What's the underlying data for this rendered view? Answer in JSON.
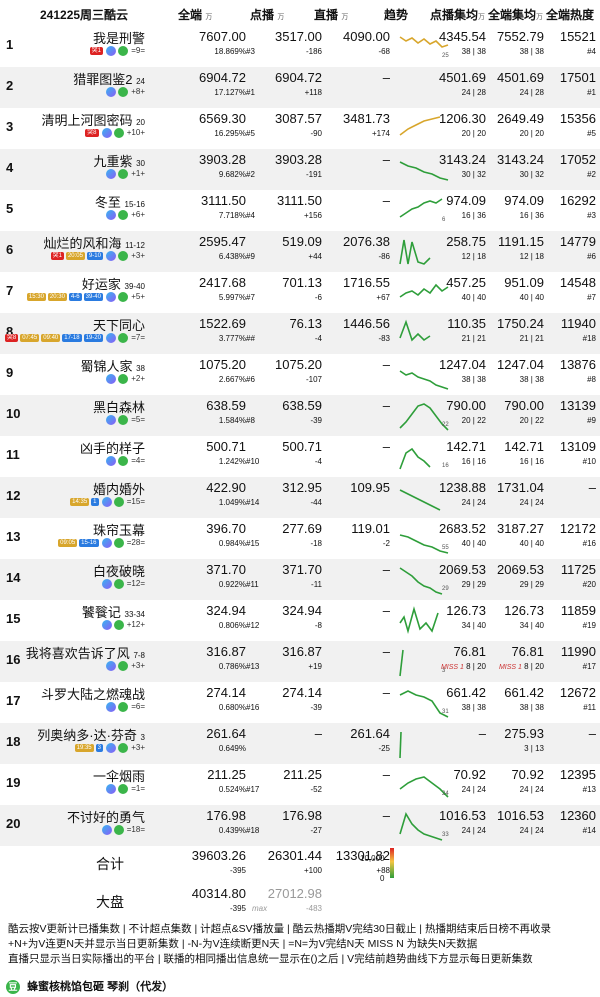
{
  "header": {
    "date_platform": "241225周三酷云",
    "col_total": "全端",
    "col_total_unit": "万",
    "col_vod": "点播",
    "col_vod_unit": "万",
    "col_live": "直播",
    "col_live_unit": "万",
    "col_trend": "趋势",
    "col_vod_avg": "点播集均",
    "col_vod_avg_unit": "万",
    "col_total_avg": "全端集均",
    "col_total_avg_unit": "万",
    "col_heat": "全端热度"
  },
  "rows": [
    {
      "rank": "1",
      "title": "我是刑警",
      "ep": "",
      "sub": "=9=",
      "tags": [
        "突1"
      ],
      "total": "7607.00",
      "share": "18.869%",
      "vod": "3517.00",
      "vod_rank": "#3",
      "vod_chg": "-186",
      "live": "4090.00",
      "live_chg": "-68",
      "trend_end": "25",
      "vod_avg": "4345.54",
      "vod_avg_ep": "38 | 38",
      "total_avg": "7552.79",
      "total_avg_ep": "38 | 38",
      "heat": "15521",
      "heat_rank": "#4"
    },
    {
      "rank": "2",
      "title": "猎罪图鉴2",
      "ep": "24",
      "sub": "+8+",
      "tags": [],
      "total": "6904.72",
      "share": "17.127%",
      "vod": "6904.72",
      "vod_rank": "#1",
      "vod_chg": "+118",
      "live": "–",
      "live_chg": "",
      "trend_end": "",
      "vod_avg": "4501.69",
      "vod_avg_ep": "24 | 28",
      "total_avg": "4501.69",
      "total_avg_ep": "24 | 28",
      "heat": "17501",
      "heat_rank": "#1"
    },
    {
      "rank": "3",
      "title": "清明上河图密码",
      "ep": "20",
      "sub": "+10+",
      "tags": [
        "突8"
      ],
      "total": "6569.30",
      "share": "16.295%",
      "vod": "3087.57",
      "vod_rank": "#5",
      "vod_chg": "-90",
      "live": "3481.73",
      "live_chg": "+174",
      "trend_end": "",
      "vod_avg": "1206.30",
      "vod_avg_ep": "20 | 20",
      "total_avg": "2649.49",
      "total_avg_ep": "20 | 20",
      "heat": "15356",
      "heat_rank": "#5"
    },
    {
      "rank": "4",
      "title": "九重紫",
      "ep": "30",
      "sub": "+1+",
      "tags": [],
      "total": "3903.28",
      "share": "9.682%",
      "vod": "3903.28",
      "vod_rank": "#2",
      "vod_chg": "-191",
      "live": "–",
      "live_chg": "",
      "trend_end": "",
      "vod_avg": "3143.24",
      "vod_avg_ep": "30 | 32",
      "total_avg": "3143.24",
      "total_avg_ep": "30 | 32",
      "heat": "17052",
      "heat_rank": "#2"
    },
    {
      "rank": "5",
      "title": "冬至",
      "ep": "15-16",
      "sub": "+6+",
      "tags": [],
      "total": "3111.50",
      "share": "7.718%",
      "vod": "3111.50",
      "vod_rank": "#4",
      "vod_chg": "+156",
      "live": "–",
      "live_chg": "",
      "trend_end": "6",
      "vod_avg": "974.09",
      "vod_avg_ep": "16 | 36",
      "total_avg": "974.09",
      "total_avg_ep": "16 | 36",
      "heat": "16292",
      "heat_rank": "#3"
    },
    {
      "rank": "6",
      "title": "灿烂的风和海",
      "ep": "11-12",
      "sub": "+3+",
      "tags": [
        "突1",
        "20:05",
        "9-10"
      ],
      "total": "2595.47",
      "share": "6.438%",
      "vod": "519.09",
      "vod_rank": "#9",
      "vod_chg": "+44",
      "live": "2076.38",
      "live_chg": "-86",
      "trend_end": "",
      "vod_avg": "258.75",
      "vod_avg_ep": "12 | 18",
      "total_avg": "1191.15",
      "total_avg_ep": "12 | 18",
      "heat": "14779",
      "heat_rank": "#6"
    },
    {
      "rank": "7",
      "title": "好运家",
      "ep": "39-40",
      "sub": "+5+",
      "tags": [
        "15:30",
        "20:30",
        "4-6",
        "39-40"
      ],
      "total": "2417.68",
      "share": "5.997%",
      "vod": "701.13",
      "vod_rank": "#7",
      "vod_chg": "-6",
      "live": "1716.55",
      "live_chg": "+67",
      "trend_end": "",
      "vod_avg": "457.25",
      "vod_avg_ep": "40 | 40",
      "total_avg": "951.09",
      "total_avg_ep": "40 | 40",
      "heat": "14548",
      "heat_rank": "#7"
    },
    {
      "rank": "8",
      "title": "天下同心",
      "ep": "",
      "sub": "=7=",
      "tags": [
        "突8",
        "07:45",
        "09:40",
        "17-18",
        "19-20"
      ],
      "total": "1522.69",
      "share": "3.777%",
      "vod": "76.13",
      "vod_rank": "##",
      "vod_chg": "-4",
      "live": "1446.56",
      "live_chg": "-83",
      "trend_end": "",
      "vod_avg": "110.35",
      "vod_avg_ep": "21 | 21",
      "total_avg": "1750.24",
      "total_avg_ep": "21 | 21",
      "heat": "11940",
      "heat_rank": "#18"
    },
    {
      "rank": "9",
      "title": "蜀锦人家",
      "ep": "38",
      "sub": "+2+",
      "tags": [],
      "total": "1075.20",
      "share": "2.667%",
      "vod": "1075.20",
      "vod_rank": "#6",
      "vod_chg": "-107",
      "live": "–",
      "live_chg": "",
      "trend_end": "",
      "vod_avg": "1247.04",
      "vod_avg_ep": "38 | 38",
      "total_avg": "1247.04",
      "total_avg_ep": "38 | 38",
      "heat": "13876",
      "heat_rank": "#8"
    },
    {
      "rank": "10",
      "title": "黑白森林",
      "ep": "",
      "sub": "=5=",
      "tags": [],
      "total": "638.59",
      "share": "1.584%",
      "vod": "638.59",
      "vod_rank": "#8",
      "vod_chg": "-39",
      "live": "–",
      "live_chg": "",
      "trend_end": "22",
      "vod_avg": "790.00",
      "vod_avg_ep": "20 | 22",
      "total_avg": "790.00",
      "total_avg_ep": "20 | 22",
      "heat": "13139",
      "heat_rank": "#9"
    },
    {
      "rank": "11",
      "title": "凶手的样子",
      "ep": "",
      "sub": "=4=",
      "tags": [],
      "total": "500.71",
      "share": "1.242%",
      "vod": "500.71",
      "vod_rank": "#10",
      "vod_chg": "-4",
      "live": "–",
      "live_chg": "",
      "trend_end": "16",
      "vod_avg": "142.71",
      "vod_avg_ep": "16 | 16",
      "total_avg": "142.71",
      "total_avg_ep": "16 | 16",
      "heat": "13109",
      "heat_rank": "#10"
    },
    {
      "rank": "12",
      "title": "婚内婚外",
      "ep": "",
      "sub": "=15=",
      "tags": [
        "14:35",
        "1"
      ],
      "total": "422.90",
      "share": "1.049%",
      "vod": "312.95",
      "vod_rank": "#14",
      "vod_chg": "-44",
      "live": "109.95",
      "live_chg": "",
      "trend_end": "",
      "vod_avg": "1238.88",
      "vod_avg_ep": "24 | 24",
      "total_avg": "1731.04",
      "total_avg_ep": "24 | 24",
      "heat": "–",
      "heat_rank": ""
    },
    {
      "rank": "13",
      "title": "珠帘玉幕",
      "ep": "",
      "sub": "=28=",
      "tags": [
        "09:05",
        "15-16"
      ],
      "total": "396.70",
      "share": "0.984%",
      "vod": "277.69",
      "vod_rank": "#15",
      "vod_chg": "-18",
      "live": "119.01",
      "live_chg": "-2",
      "trend_end": "55",
      "vod_avg": "2683.52",
      "vod_avg_ep": "40 | 40",
      "total_avg": "3187.27",
      "total_avg_ep": "40 | 40",
      "heat": "12172",
      "heat_rank": "#16"
    },
    {
      "rank": "14",
      "title": "白夜破晓",
      "ep": "",
      "sub": "=12=",
      "tags": [],
      "total": "371.70",
      "share": "0.922%",
      "vod": "371.70",
      "vod_rank": "#11",
      "vod_chg": "-11",
      "live": "–",
      "live_chg": "",
      "trend_end": "29",
      "vod_avg": "2069.53",
      "vod_avg_ep": "29 | 29",
      "total_avg": "2069.53",
      "total_avg_ep": "29 | 29",
      "heat": "11725",
      "heat_rank": "#20"
    },
    {
      "rank": "15",
      "title": "饕餮记",
      "ep": "33-34",
      "sub": "+12+",
      "tags": [],
      "total": "324.94",
      "share": "0.806%",
      "vod": "324.94",
      "vod_rank": "#12",
      "vod_chg": "-8",
      "live": "–",
      "live_chg": "",
      "trend_end": "",
      "vod_avg": "126.73",
      "vod_avg_ep": "34 | 40",
      "total_avg": "126.73",
      "total_avg_ep": "34 | 40",
      "heat": "11859",
      "heat_rank": "#19"
    },
    {
      "rank": "16",
      "title": "我将喜欢告诉了风",
      "ep": "7-8",
      "sub": "+3+",
      "tags": [],
      "total": "316.87",
      "share": "0.786%",
      "vod": "316.87",
      "vod_rank": "#13",
      "vod_chg": "+19",
      "live": "–",
      "live_chg": "",
      "trend_end": "3",
      "vod_avg": "76.81",
      "vod_avg_ep": "8 | 20",
      "vod_avg_miss": "MISS 1",
      "total_avg": "76.81",
      "total_avg_ep": "8 | 20",
      "total_avg_miss": "MISS 1",
      "heat": "11990",
      "heat_rank": "#17"
    },
    {
      "rank": "17",
      "title": "斗罗大陆之燃魂战",
      "ep": "",
      "sub": "=6=",
      "tags": [],
      "total": "274.14",
      "share": "0.680%",
      "vod": "274.14",
      "vod_rank": "#16",
      "vod_chg": "-39",
      "live": "–",
      "live_chg": "",
      "trend_end": "31",
      "vod_avg": "661.42",
      "vod_avg_ep": "38 | 38",
      "total_avg": "661.42",
      "total_avg_ep": "38 | 38",
      "heat": "12672",
      "heat_rank": "#11"
    },
    {
      "rank": "18",
      "title": "列奥纳多·达·芬奇",
      "ep": "3",
      "sub": "+3+",
      "tags": [
        "19:35",
        "3"
      ],
      "total": "261.64",
      "share": "0.649%",
      "vod": "–",
      "vod_rank": "",
      "vod_chg": "",
      "live": "261.64",
      "live_chg": "-25",
      "trend_end": "",
      "vod_avg": "–",
      "vod_avg_ep": "",
      "total_avg": "275.93",
      "total_avg_ep": "3 | 13",
      "heat": "–",
      "heat_rank": ""
    },
    {
      "rank": "19",
      "title": "一伞烟雨",
      "ep": "",
      "sub": "=1=",
      "tags": [],
      "total": "211.25",
      "share": "0.524%",
      "vod": "211.25",
      "vod_rank": "#17",
      "vod_chg": "-52",
      "live": "–",
      "live_chg": "",
      "trend_end": "24",
      "vod_avg": "70.92",
      "vod_avg_ep": "24 | 24",
      "total_avg": "70.92",
      "total_avg_ep": "24 | 24",
      "heat": "12395",
      "heat_rank": "#13"
    },
    {
      "rank": "20",
      "title": "不讨好的勇气",
      "ep": "",
      "sub": "=18=",
      "tags": [],
      "total": "176.98",
      "share": "0.439%",
      "vod": "176.98",
      "vod_rank": "#18",
      "vod_chg": "-27",
      "live": "–",
      "live_chg": "",
      "trend_end": "33",
      "vod_avg": "1016.53",
      "vod_avg_ep": "24 | 24",
      "total_avg": "1016.53",
      "total_avg_ep": "24 | 24",
      "heat": "12360",
      "heat_rank": "#14"
    }
  ],
  "totals": {
    "label": "合计",
    "total": "39603.26",
    "total_chg": "-395",
    "vod": "26301.44",
    "vod_chg": "+100",
    "live": "13301.82",
    "live_chg": "+88",
    "legend_max": "10,000",
    "legend_min": "0"
  },
  "market": {
    "label": "大盘",
    "total": "40314.80",
    "total_chg": "-395",
    "max": "27012.98",
    "max_label": "max",
    "max_chg": "-483"
  },
  "notes": [
    "酷云按V更新计已播集数 | 不计超点集数 | 计超点&SV播放量 | 酷云热播期V完结30日截止 | 热播期结束后日榜不再收录",
    "+N+为V连更N天并显示当日更新集数 | -N-为V连续断更N天 | =N=为V完结N天 MISS N 为缺失N天数据",
    "直播只显示当日实际播出的平台 | 联播的相同播出信息统一显示在()之后 | V完结前趋势曲线下方显示每日更新集数"
  ],
  "footer": {
    "logo": "豆",
    "text": "蜂蜜核桃馅包砸 琴刹（代发）"
  },
  "colors": {
    "accent_green": "#3bb54a",
    "trend_gold": "#d8a62c",
    "alt_row": "#f1f1f1"
  }
}
